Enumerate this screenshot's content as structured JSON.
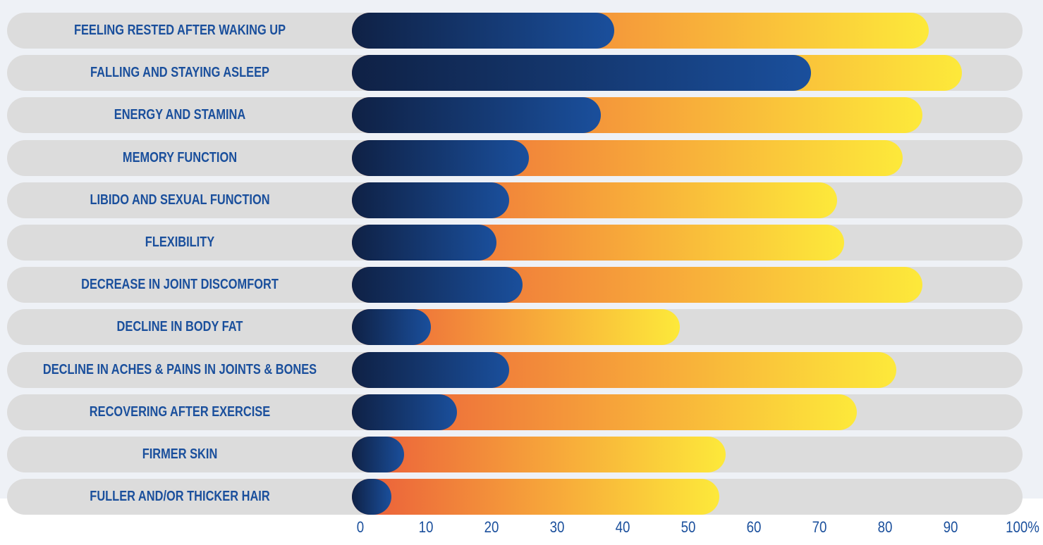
{
  "colors": {
    "label": "#1a4f9c",
    "track": "#dcdcdc",
    "strong_start": "#0f2145",
    "strong_end": "#1a4f9c",
    "mild_start": "#ea5a3a",
    "mild_mid": "#f7a83a",
    "mild_end": "#fde93a"
  },
  "chart_data": {
    "type": "bar",
    "orientation": "horizontal",
    "stacked": true,
    "xlim": [
      0,
      100
    ],
    "categories": [
      "FEELING RESTED AFTER WAKING UP",
      "FALLING AND STAYING ASLEEP",
      "ENERGY AND STAMINA",
      "MEMORY FUNCTION",
      "LIBIDO AND SEXUAL FUNCTION",
      "FLEXIBILITY",
      "DECREASE IN JOINT DISCOMFORT",
      "DECLINE IN BODY FAT",
      "DECLINE IN ACHES & PAINS IN JOINTS & BONES",
      "RECOVERING AFTER EXERCISE",
      "FIRMER SKIN",
      "FULLER AND/OR THICKER HAIR"
    ],
    "series": [
      {
        "values": [
          40,
          70,
          38,
          27,
          24,
          22,
          26,
          12,
          24,
          16,
          8,
          6
        ]
      },
      {
        "values": [
          48,
          23,
          49,
          57,
          50,
          53,
          61,
          38,
          59,
          61,
          49,
          50
        ]
      }
    ],
    "ticks": [
      "0",
      "10",
      "20",
      "30",
      "40",
      "50",
      "60",
      "70",
      "80",
      "90",
      "100%"
    ]
  }
}
